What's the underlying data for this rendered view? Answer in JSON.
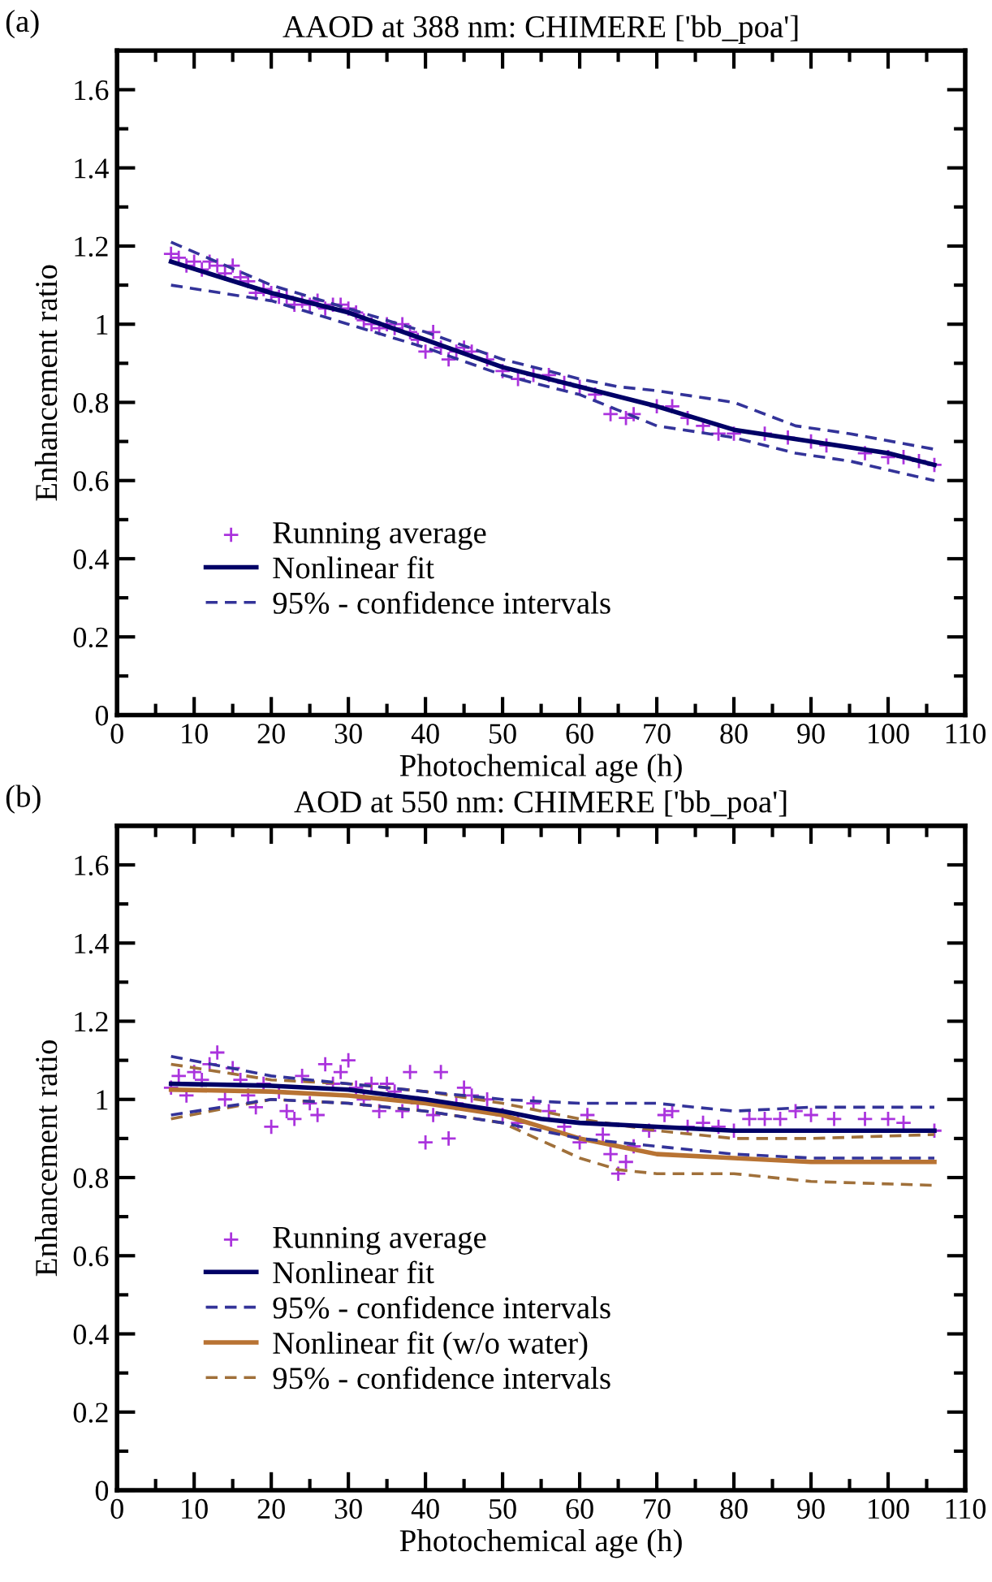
{
  "chart_data": [
    {
      "type": "line",
      "title": "AAOD at 388 nm: CHIMERE ['bb_poa']",
      "xlabel": "Photochemical age (h)",
      "ylabel": "Enhancement ratio",
      "annotations": [
        "(a)"
      ],
      "xlim": [
        0,
        110
      ],
      "ylim": [
        0,
        1.7
      ],
      "xticks": [
        0,
        10,
        20,
        30,
        40,
        50,
        60,
        70,
        80,
        90,
        100,
        110
      ],
      "yticks": [
        0,
        0.2,
        0.4,
        0.6,
        0.8,
        1,
        1.2,
        1.4,
        1.6
      ],
      "grid": false,
      "legend": "bottom left",
      "series": [
        {
          "type": "scatter",
          "name": "Running average",
          "color": "#aa33dd",
          "marker": "cross",
          "x": [
            7,
            8,
            9,
            10,
            11,
            12,
            13,
            14,
            15,
            16,
            17,
            18,
            19,
            20,
            21,
            22,
            23,
            24,
            25,
            26,
            27,
            28,
            29,
            30,
            31,
            32,
            33,
            34,
            35,
            36,
            37,
            38,
            39,
            40,
            41,
            42,
            43,
            44,
            45,
            46,
            48,
            50,
            52,
            54,
            56,
            58,
            60,
            62,
            64,
            66,
            67,
            70,
            72,
            74,
            76,
            78,
            80,
            84,
            87,
            90,
            92,
            97,
            100,
            102,
            104,
            106
          ],
          "values": [
            1.18,
            1.17,
            1.15,
            1.16,
            1.14,
            1.16,
            1.15,
            1.13,
            1.15,
            1.12,
            1.11,
            1.08,
            1.09,
            1.08,
            1.07,
            1.07,
            1.05,
            1.06,
            1.05,
            1.06,
            1.04,
            1.05,
            1.05,
            1.04,
            1.03,
            1.01,
            1.0,
            0.99,
            1.0,
            0.99,
            1.0,
            0.98,
            0.96,
            0.93,
            0.98,
            0.94,
            0.91,
            0.93,
            0.94,
            0.93,
            0.91,
            0.88,
            0.86,
            0.87,
            0.87,
            0.85,
            0.84,
            0.82,
            0.77,
            0.76,
            0.77,
            0.79,
            0.79,
            0.76,
            0.74,
            0.72,
            0.72,
            0.72,
            0.71,
            0.7,
            0.69,
            0.67,
            0.66,
            0.66,
            0.65,
            0.64
          ]
        },
        {
          "type": "line",
          "name": "Nonlinear fit",
          "color": "#000066",
          "line_style": "solid",
          "x": [
            7,
            20,
            30,
            40,
            50,
            60,
            70,
            80,
            90,
            100,
            106
          ],
          "values": [
            1.16,
            1.08,
            1.03,
            0.96,
            0.89,
            0.84,
            0.79,
            0.73,
            0.7,
            0.67,
            0.64
          ]
        },
        {
          "type": "line",
          "name": "95% - confidence intervals",
          "color": "#333399",
          "line_style": "dashed",
          "x": [
            7,
            20,
            30,
            40,
            50,
            60,
            65,
            70,
            80,
            88,
            95,
            106
          ],
          "values": [
            1.21,
            1.1,
            1.04,
            0.98,
            0.91,
            0.86,
            0.84,
            0.83,
            0.8,
            0.74,
            0.72,
            0.68
          ]
        },
        {
          "type": "line",
          "color": "#333399",
          "line_style": "dashed",
          "x": [
            7,
            20,
            30,
            40,
            50,
            60,
            70,
            80,
            88,
            95,
            106
          ],
          "values": [
            1.1,
            1.06,
            1.0,
            0.94,
            0.87,
            0.82,
            0.74,
            0.71,
            0.67,
            0.65,
            0.6
          ]
        }
      ]
    },
    {
      "type": "line",
      "title": "AOD at 550 nm: CHIMERE ['bb_poa']",
      "xlabel": "Photochemical age (h)",
      "ylabel": "Enhancement ratio",
      "annotations": [
        "(b)"
      ],
      "xlim": [
        0,
        110
      ],
      "ylim": [
        0,
        1.7
      ],
      "xticks": [
        0,
        10,
        20,
        30,
        40,
        50,
        60,
        70,
        80,
        90,
        100,
        110
      ],
      "yticks": [
        0,
        0.2,
        0.4,
        0.6,
        0.8,
        1,
        1.2,
        1.4,
        1.6
      ],
      "grid": false,
      "legend": "bottom left",
      "series": [
        {
          "type": "scatter",
          "name": "Running average",
          "color": "#aa33dd",
          "marker": "cross",
          "x": [
            7,
            8,
            9,
            10,
            11,
            12,
            13,
            14,
            15,
            16,
            17,
            18,
            19,
            20,
            21,
            22,
            23,
            24,
            25,
            26,
            27,
            28,
            29,
            30,
            31,
            32,
            33,
            34,
            35,
            36,
            37,
            38,
            39,
            40,
            41,
            42,
            43,
            44,
            45,
            46,
            48,
            50,
            52,
            54,
            56,
            58,
            60,
            61,
            63,
            64,
            65,
            66,
            67,
            69,
            71,
            72,
            74,
            76,
            78,
            80,
            82,
            84,
            86,
            88,
            90,
            93,
            97,
            100,
            102,
            106
          ],
          "values": [
            1.03,
            1.06,
            1.01,
            1.07,
            1.05,
            1.09,
            1.12,
            1.0,
            1.08,
            1.05,
            1.01,
            0.98,
            1.04,
            0.93,
            1.02,
            0.97,
            0.95,
            1.06,
            0.99,
            0.96,
            1.09,
            1.04,
            1.07,
            1.1,
            1.03,
            1.0,
            1.04,
            0.97,
            1.04,
            1.02,
            0.97,
            1.07,
            0.99,
            0.89,
            0.96,
            1.07,
            0.9,
            0.99,
            1.03,
            1.01,
            1.0,
            0.96,
            0.94,
            0.99,
            0.97,
            0.93,
            0.89,
            0.96,
            0.91,
            0.86,
            0.81,
            0.84,
            0.88,
            0.92,
            0.96,
            0.97,
            0.93,
            0.94,
            0.93,
            0.92,
            0.95,
            0.95,
            0.95,
            0.97,
            0.96,
            0.95,
            0.95,
            0.95,
            0.94,
            0.92
          ]
        },
        {
          "name": "Nonlinear fit",
          "color": "#000066",
          "line_style": "solid",
          "x": [
            7,
            20,
            30,
            40,
            50,
            55,
            60,
            70,
            80,
            106
          ],
          "values": [
            1.04,
            1.035,
            1.025,
            1.0,
            0.97,
            0.95,
            0.94,
            0.93,
            0.92,
            0.92
          ]
        },
        {
          "type": "line",
          "name": "95% - confidence intervals",
          "color": "#333399",
          "line_style": "dashed",
          "x": [
            7,
            20,
            30,
            40,
            50,
            60,
            70,
            80,
            90,
            106
          ],
          "values": [
            1.11,
            1.06,
            1.04,
            1.02,
            1.0,
            0.99,
            0.99,
            0.97,
            0.98,
            0.98
          ]
        },
        {
          "type": "line",
          "color": "#333399",
          "line_style": "dashed",
          "x": [
            7,
            20,
            30,
            40,
            50,
            60,
            70,
            80,
            90,
            106
          ],
          "values": [
            0.96,
            1.0,
            0.99,
            0.97,
            0.94,
            0.9,
            0.88,
            0.86,
            0.85,
            0.85
          ]
        },
        {
          "name": "Nonlinear fit (w/o water)",
          "color": "#b87333",
          "line_style": "solid",
          "x": [
            7,
            20,
            30,
            40,
            50,
            55,
            60,
            65,
            70,
            80,
            90,
            106
          ],
          "values": [
            1.025,
            1.02,
            1.01,
            0.99,
            0.96,
            0.93,
            0.9,
            0.88,
            0.86,
            0.85,
            0.84,
            0.84
          ]
        },
        {
          "type": "line",
          "name": "95% - confidence intervals",
          "color": "#a0703a",
          "line_style": "dashed",
          "x": [
            7,
            20,
            30,
            40,
            50,
            60,
            70,
            80,
            90,
            106
          ],
          "values": [
            1.09,
            1.05,
            1.04,
            1.02,
            0.99,
            0.95,
            0.92,
            0.9,
            0.9,
            0.91
          ]
        },
        {
          "type": "line",
          "color": "#a0703a",
          "line_style": "dashed",
          "x": [
            7,
            20,
            30,
            40,
            50,
            60,
            65,
            70,
            80,
            90,
            106
          ],
          "values": [
            0.95,
            1.0,
            0.99,
            0.97,
            0.94,
            0.85,
            0.82,
            0.81,
            0.81,
            0.79,
            0.78
          ]
        }
      ]
    }
  ]
}
